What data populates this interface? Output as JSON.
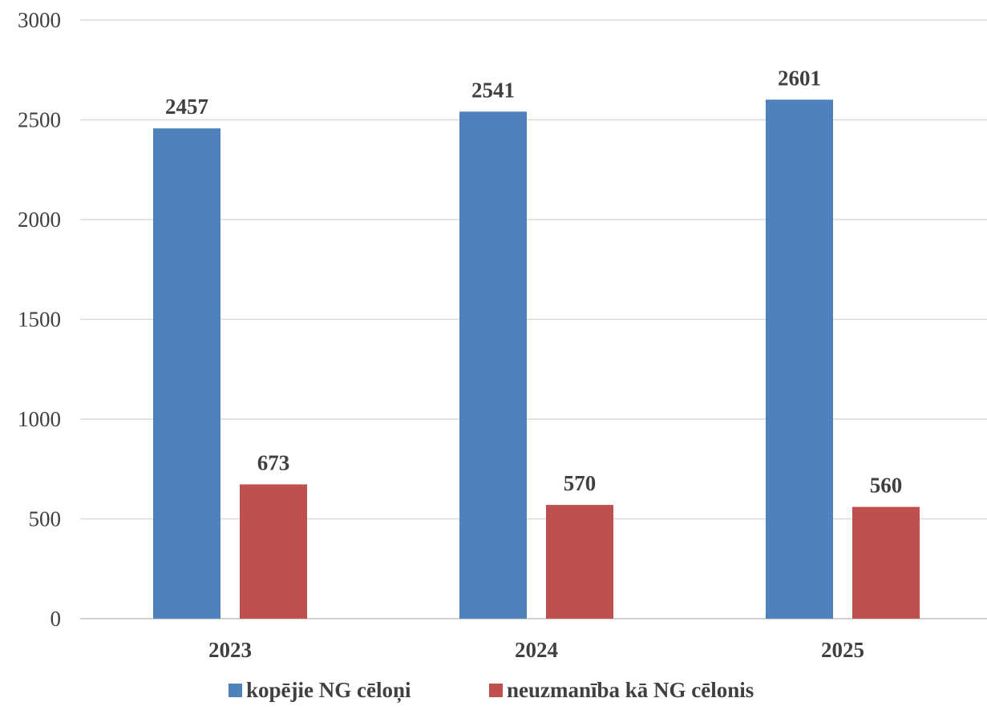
{
  "chart_data": {
    "type": "bar",
    "title": "",
    "xlabel": "",
    "ylabel": "",
    "categories": [
      "2023",
      "2024",
      "2025"
    ],
    "series": [
      {
        "name": "kopējie NG cēloņi",
        "values": [
          2457,
          2541,
          2601
        ],
        "color": "#4f81bd"
      },
      {
        "name": "neuzmanība kā NG cēlonis",
        "values": [
          673,
          570,
          560
        ],
        "color": "#c0504d"
      }
    ],
    "ylim": [
      0,
      3000
    ],
    "yticks": [
      0,
      500,
      1000,
      1500,
      2000,
      2500,
      3000
    ],
    "grid": true,
    "legend": "bottom",
    "data_labels": true
  }
}
